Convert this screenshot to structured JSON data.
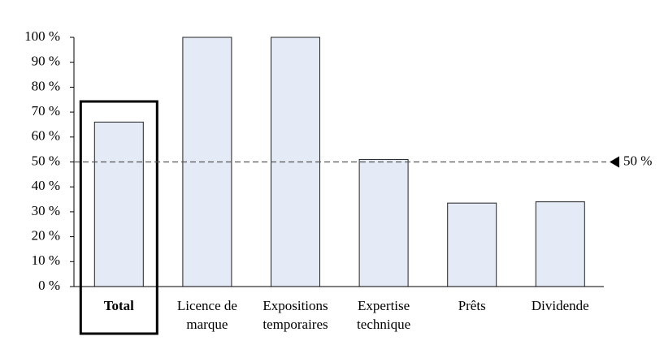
{
  "chart_data": {
    "type": "bar",
    "categories": [
      "Total",
      "Licence de marque",
      "Expositions temporaires",
      "Expertise technique",
      "Prêts",
      "Dividende"
    ],
    "values": [
      66,
      100,
      100,
      51,
      33.5,
      34
    ],
    "color": "#e4eaf6",
    "highlight": 0,
    "ylim": [
      0,
      100
    ],
    "yticks": [
      {
        "value": 0,
        "label": "0 %"
      },
      {
        "value": 10,
        "label": "10 %"
      },
      {
        "value": 20,
        "label": "20 %"
      },
      {
        "value": 30,
        "label": "30 %"
      },
      {
        "value": 40,
        "label": "40 %"
      },
      {
        "value": 50,
        "label": "50 %"
      },
      {
        "value": 60,
        "label": "60 %"
      },
      {
        "value": 70,
        "label": "70 %"
      },
      {
        "value": 80,
        "label": "80 %"
      },
      {
        "value": 90,
        "label": "90 %"
      },
      {
        "value": 100,
        "label": "100 %"
      }
    ],
    "reference_line": {
      "value": 50,
      "label": "50 %"
    }
  }
}
